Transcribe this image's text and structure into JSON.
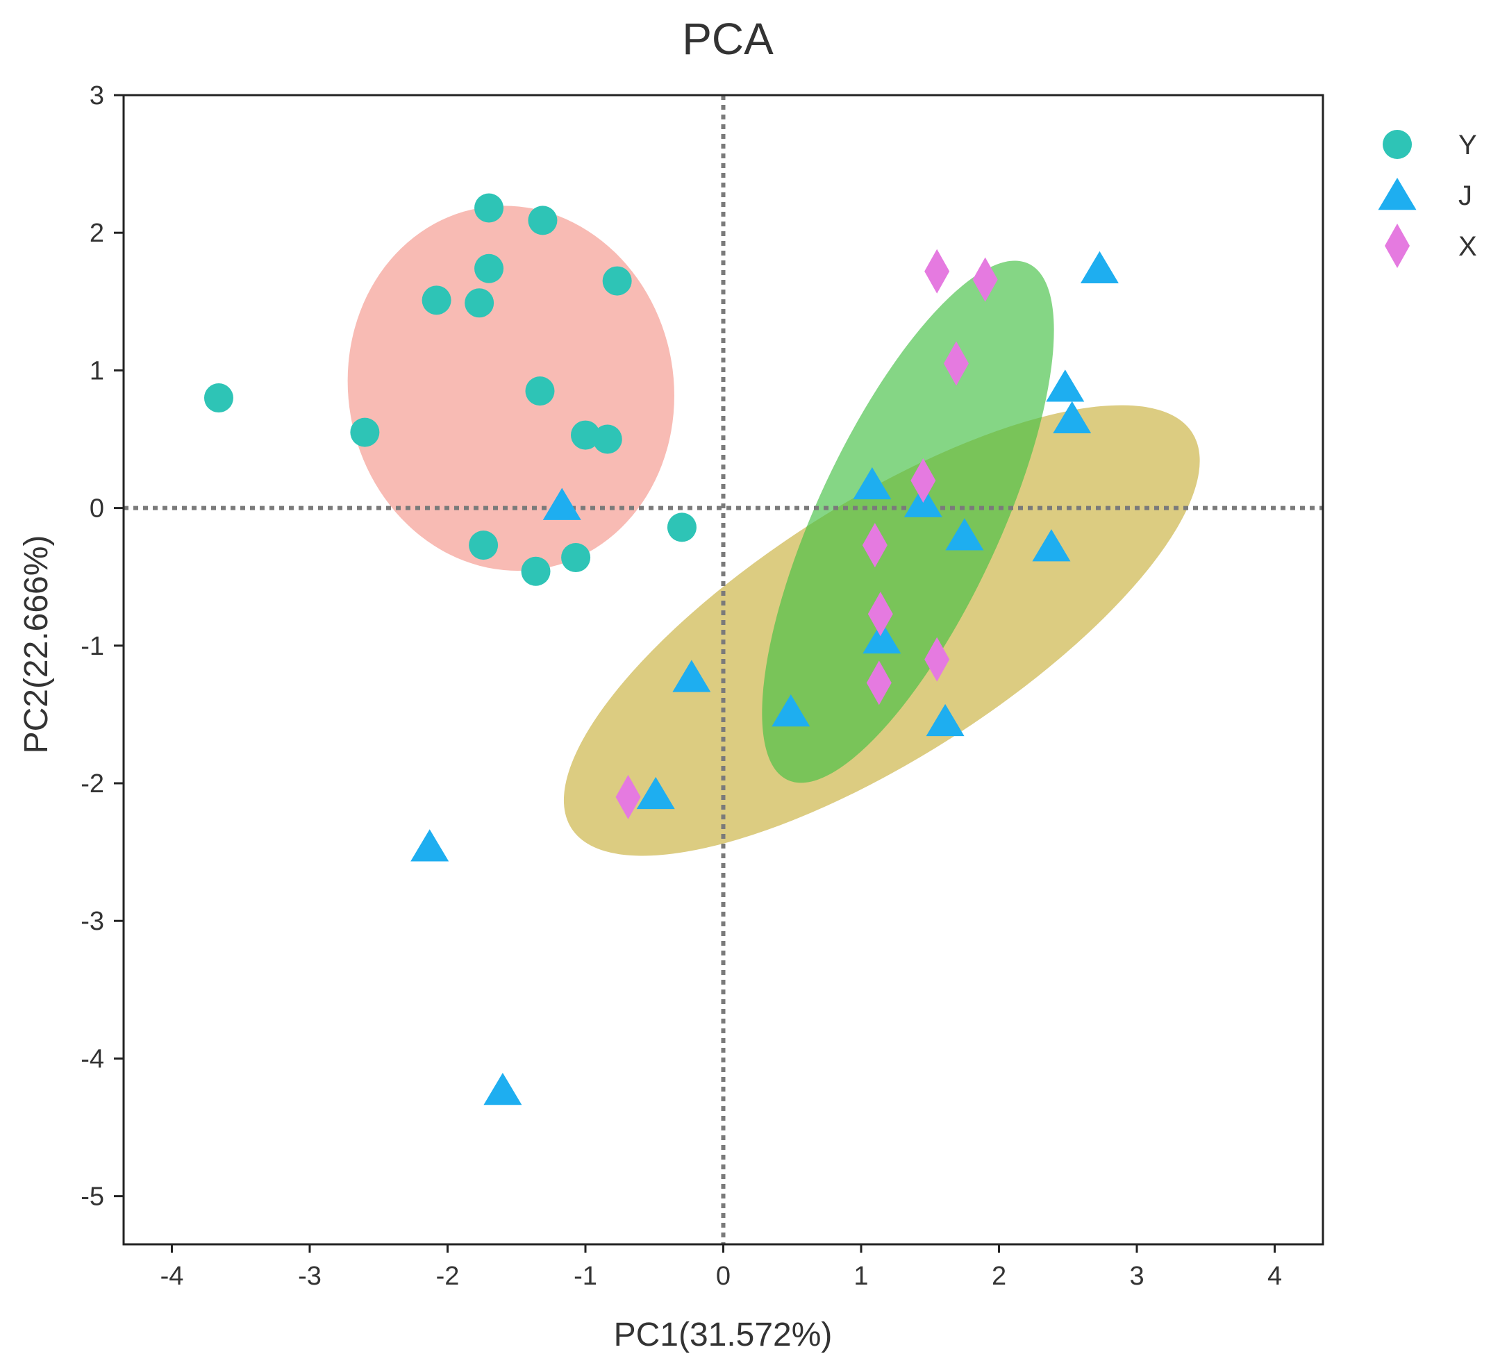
{
  "chart_data": {
    "type": "scatter",
    "title": "PCA",
    "xlabel": "PC1(31.572%)",
    "ylabel": "PC2(22.666%)",
    "xlim": [
      -4.35,
      4.35
    ],
    "ylim": [
      -5.35,
      3.0
    ],
    "xticks": [
      -4,
      -3,
      -2,
      -1,
      0,
      1,
      2,
      3,
      4
    ],
    "yticks": [
      -5,
      -4,
      -3,
      -2,
      -1,
      0,
      1,
      2,
      3
    ],
    "reference_lines": {
      "x": 0,
      "y": 0,
      "style": "dotted"
    },
    "grid": false,
    "legend_position": "right",
    "series": [
      {
        "name": "Y",
        "marker": "circle",
        "color": "#2EC4B6",
        "points": [
          [
            -1.7,
            2.18
          ],
          [
            -1.31,
            2.09
          ],
          [
            -1.7,
            1.74
          ],
          [
            -0.77,
            1.65
          ],
          [
            -2.08,
            1.51
          ],
          [
            -1.77,
            1.49
          ],
          [
            -3.66,
            0.8
          ],
          [
            -1.33,
            0.85
          ],
          [
            -2.6,
            0.55
          ],
          [
            -1.0,
            0.53
          ],
          [
            -0.84,
            0.5
          ],
          [
            -0.3,
            -0.14
          ],
          [
            -1.74,
            -0.27
          ],
          [
            -1.07,
            -0.36
          ],
          [
            -1.36,
            -0.46
          ]
        ]
      },
      {
        "name": "J",
        "marker": "triangle",
        "color": "#1EAEF0",
        "points": [
          [
            2.73,
            1.74
          ],
          [
            2.48,
            0.88
          ],
          [
            2.53,
            0.65
          ],
          [
            1.08,
            0.17
          ],
          [
            1.45,
            0.04
          ],
          [
            -1.17,
            0.02
          ],
          [
            1.75,
            -0.2
          ],
          [
            2.38,
            -0.28
          ],
          [
            1.15,
            -0.95
          ],
          [
            -0.23,
            -1.23
          ],
          [
            0.49,
            -1.48
          ],
          [
            1.61,
            -1.55
          ],
          [
            -0.49,
            -2.08
          ],
          [
            -2.13,
            -2.46
          ],
          [
            -1.6,
            -4.23
          ]
        ]
      },
      {
        "name": "X",
        "marker": "diamond",
        "color": "#E57AE0",
        "points": [
          [
            1.55,
            1.72
          ],
          [
            1.9,
            1.66
          ],
          [
            1.69,
            1.05
          ],
          [
            1.45,
            0.2
          ],
          [
            1.1,
            -0.27
          ],
          [
            1.14,
            -0.77
          ],
          [
            1.55,
            -1.1
          ],
          [
            1.13,
            -1.27
          ],
          [
            -0.69,
            -2.1
          ]
        ]
      }
    ],
    "ellipses": [
      {
        "group": "Y",
        "color": "#F4968C",
        "opacity": 0.65,
        "center": [
          -1.54,
          0.87
        ],
        "rx": 1.18,
        "ry": 1.33,
        "angle_deg": 10
      },
      {
        "group": "J",
        "color": "#C9B13E",
        "opacity": 0.65,
        "center": [
          1.15,
          -0.89
        ],
        "rx": 2.67,
        "ry": 0.93,
        "angle_deg": 32.5
      },
      {
        "group": "X",
        "color": "#44C044",
        "opacity": 0.65,
        "center": [
          1.34,
          -0.1
        ],
        "rx": 0.66,
        "ry": 2.07,
        "angle_deg": -25
      }
    ]
  }
}
